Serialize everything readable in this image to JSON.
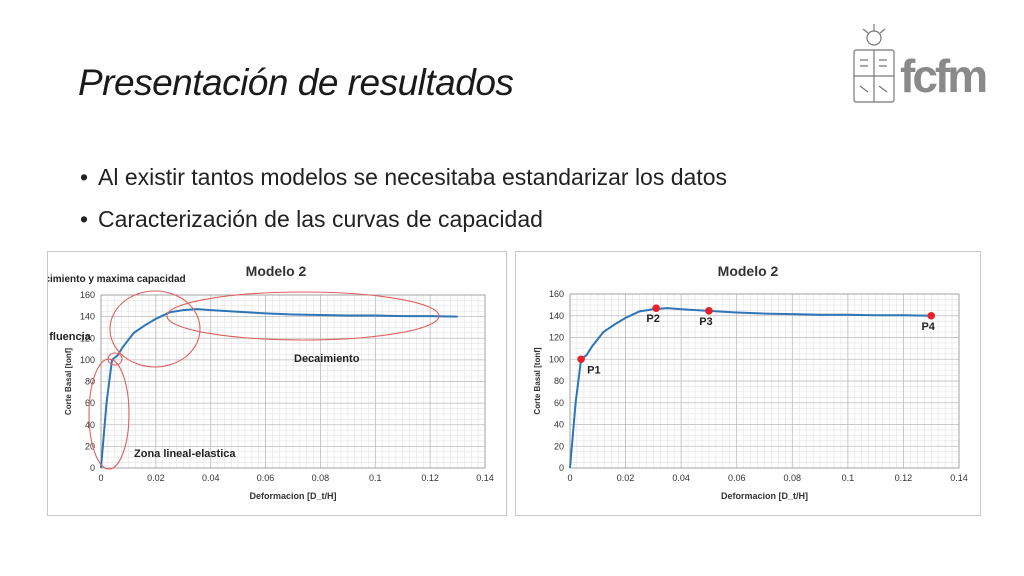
{
  "slide": {
    "title": "Presentación de resultados",
    "bullets": [
      "Al existir tantos modelos se necesitaba estandarizar los datos",
      "Caracterización de las curvas de capacidad"
    ]
  },
  "logo": {
    "text": "fcfm",
    "icon": "university-seal-icon",
    "accent_color": "#e2231a"
  },
  "chart_data": [
    {
      "type": "line",
      "title": "Modelo 2",
      "xlabel": "Deformacion [D_t/H]",
      "ylabel": "Corte Basal [tonf]",
      "xlim": [
        0,
        0.14
      ],
      "ylim": [
        0,
        160
      ],
      "xticks": [
        "0",
        "0.02",
        "0.04",
        "0.06",
        "0.08",
        "0.1",
        "0.12",
        "0.14"
      ],
      "yticks": [
        "0",
        "20",
        "40",
        "60",
        "80",
        "100",
        "120",
        "140",
        "160"
      ],
      "grid": true,
      "line_color": "#2e75b6",
      "series": [
        {
          "x": [
            0,
            0.002,
            0.004,
            0.006,
            0.008,
            0.012,
            0.016,
            0.02,
            0.025,
            0.03,
            0.035,
            0.04,
            0.05,
            0.06,
            0.07,
            0.08,
            0.09,
            0.1,
            0.11,
            0.12,
            0.13
          ],
          "y": [
            0,
            60,
            100,
            104,
            112,
            125,
            132,
            138,
            144,
            146,
            147,
            146,
            144.5,
            143,
            142,
            141.5,
            141,
            141,
            140.5,
            140.5,
            140
          ]
        }
      ],
      "annotations": [
        {
          "text": "Endurecimiento y maxima capacidad"
        },
        {
          "text": "Zona de fluencia"
        },
        {
          "text": "Decaimiento"
        },
        {
          "text": "Zona lineal-elastica"
        }
      ]
    },
    {
      "type": "line",
      "title": "Modelo 2",
      "xlabel": "Deformacion [D_t/H]",
      "ylabel": "Corte Basal [tonf]",
      "xlim": [
        0,
        0.14
      ],
      "ylim": [
        0,
        160
      ],
      "xticks": [
        "0",
        "0.02",
        "0.04",
        "0.06",
        "0.08",
        "0.1",
        "0.12",
        "0.14"
      ],
      "yticks": [
        "0",
        "20",
        "40",
        "60",
        "80",
        "100",
        "120",
        "140",
        "160"
      ],
      "grid": true,
      "line_color": "#2e75b6",
      "point_color": "#e8202a",
      "series": [
        {
          "x": [
            0,
            0.002,
            0.004,
            0.006,
            0.008,
            0.012,
            0.016,
            0.02,
            0.025,
            0.03,
            0.035,
            0.04,
            0.05,
            0.06,
            0.07,
            0.08,
            0.09,
            0.1,
            0.11,
            0.12,
            0.13
          ],
          "y": [
            0,
            60,
            100,
            104,
            112,
            125,
            132,
            138,
            144,
            146,
            147,
            146,
            144.5,
            143,
            142,
            141.5,
            141,
            141,
            140.5,
            140.5,
            140
          ]
        }
      ],
      "points": [
        {
          "label": "P1",
          "x": 0.004,
          "y": 100
        },
        {
          "label": "P2",
          "x": 0.031,
          "y": 147
        },
        {
          "label": "P3",
          "x": 0.05,
          "y": 144.5
        },
        {
          "label": "P4",
          "x": 0.13,
          "y": 140
        }
      ]
    }
  ]
}
